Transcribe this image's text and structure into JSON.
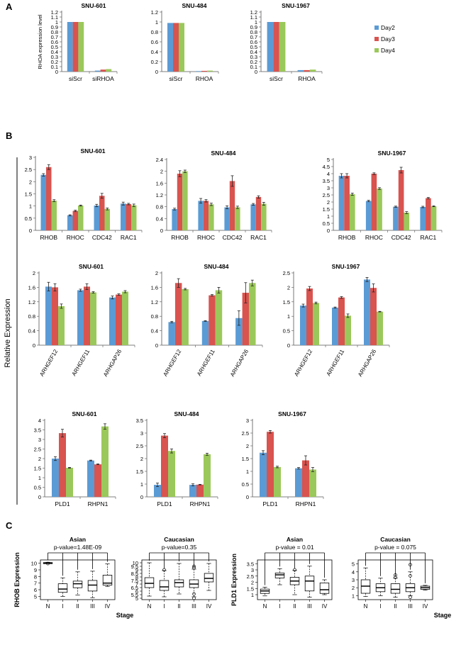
{
  "panel_labels": [
    "A",
    "B",
    "C"
  ],
  "shared_ylabel": "Relative Expression",
  "colors": {
    "day2": "#5b9bd5",
    "day3": "#d9534f",
    "day4": "#9bc85a",
    "axis": "#555555"
  },
  "legend": [
    "Day2",
    "Day3",
    "Day4"
  ],
  "chart_data": [
    {
      "id": "a1",
      "type": "bar",
      "title": "SNU-601",
      "ylabel": "RHOA expression level",
      "categories": [
        "siScr",
        "siRHOA"
      ],
      "yticks": [
        0,
        0.1,
        0.2,
        0.3,
        0.4,
        0.5,
        0.6,
        0.7,
        0.8,
        0.9,
        1,
        1.1,
        1.2
      ],
      "ylim": [
        0,
        1.2
      ],
      "series": [
        {
          "name": "Day2",
          "values": [
            1,
            0.02
          ]
        },
        {
          "name": "Day3",
          "values": [
            1,
            0.04
          ]
        },
        {
          "name": "Day4",
          "values": [
            1,
            0.05
          ]
        }
      ]
    },
    {
      "id": "a2",
      "type": "bar",
      "title": "SNU-484",
      "ylabel": "",
      "categories": [
        "siScr",
        "RHOA"
      ],
      "yticks": [
        0,
        0.2,
        0.4,
        0.6,
        0.8,
        1,
        1.2
      ],
      "ylim": [
        0,
        1.2
      ],
      "series": [
        {
          "name": "Day2",
          "values": [
            0.98,
            0.01
          ]
        },
        {
          "name": "Day3",
          "values": [
            0.98,
            0.015
          ]
        },
        {
          "name": "Day4",
          "values": [
            0.98,
            0.02
          ]
        }
      ]
    },
    {
      "id": "a3",
      "type": "bar",
      "title": "SNU-1967",
      "ylabel": "",
      "categories": [
        "siScr",
        "RHOA"
      ],
      "yticks": [
        0,
        0.1,
        0.2,
        0.3,
        0.4,
        0.5,
        0.6,
        0.7,
        0.8,
        0.9,
        1,
        1.1,
        1.2
      ],
      "ylim": [
        0,
        1.2
      ],
      "series": [
        {
          "name": "Day2",
          "values": [
            1,
            0.03
          ]
        },
        {
          "name": "Day3",
          "values": [
            1,
            0.03
          ]
        },
        {
          "name": "Day4",
          "values": [
            1,
            0.04
          ]
        }
      ]
    },
    {
      "id": "b1",
      "type": "bar",
      "title": "SNU-601",
      "categories": [
        "RHOB",
        "RHOC",
        "CDC42",
        "RAC1"
      ],
      "yticks": [
        0,
        0.5,
        1,
        1.5,
        2,
        2.5,
        3
      ],
      "ylim": [
        0,
        3
      ],
      "series": [
        {
          "name": "Day2",
          "values": [
            2.28,
            0.62,
            1.02,
            1.1
          ],
          "err": [
            0.05,
            0.02,
            0.05,
            0.06
          ]
        },
        {
          "name": "Day3",
          "values": [
            2.6,
            0.8,
            1.42,
            1.08
          ],
          "err": [
            0.1,
            0.03,
            0.1,
            0.03
          ]
        },
        {
          "name": "Day4",
          "values": [
            1.22,
            1.02,
            0.88,
            1.03
          ],
          "err": [
            0.04,
            0.02,
            0.04,
            0.05
          ]
        }
      ]
    },
    {
      "id": "b2",
      "type": "bar",
      "title": "SNU-484",
      "categories": [
        "RHOB",
        "RHOC",
        "CDC42",
        "RAC1"
      ],
      "yticks": [
        0,
        0.4,
        0.8,
        1.2,
        1.6,
        2,
        2.4
      ],
      "ylim": [
        0,
        2.4
      ],
      "series": [
        {
          "name": "Day2",
          "values": [
            0.72,
            1.0,
            0.78,
            0.88
          ],
          "err": [
            0.03,
            0.08,
            0.05,
            0.03
          ]
        },
        {
          "name": "Day3",
          "values": [
            1.92,
            1.0,
            1.67,
            1.13
          ],
          "err": [
            0.1,
            0.04,
            0.18,
            0.04
          ]
        },
        {
          "name": "Day4",
          "values": [
            2.0,
            0.88,
            0.78,
            0.9
          ],
          "err": [
            0.04,
            0.04,
            0.04,
            0.05
          ]
        }
      ]
    },
    {
      "id": "b3",
      "type": "bar",
      "title": "SNU-1967",
      "categories": [
        "RHOB",
        "RHOC",
        "CDC42",
        "RAC1"
      ],
      "yticks": [
        0,
        0.5,
        1,
        1.5,
        2,
        2.5,
        3,
        3.5,
        4,
        4.5,
        5
      ],
      "ylim": [
        0,
        5
      ],
      "series": [
        {
          "name": "Day2",
          "values": [
            3.85,
            2.07,
            1.67,
            1.65
          ],
          "err": [
            0.15,
            0.05,
            0.04,
            0.05
          ]
        },
        {
          "name": "Day3",
          "values": [
            3.85,
            4.0,
            4.25,
            2.27
          ],
          "err": [
            0.15,
            0.06,
            0.2,
            0.05
          ]
        },
        {
          "name": "Day4",
          "values": [
            2.55,
            2.95,
            1.25,
            1.7
          ],
          "err": [
            0.08,
            0.06,
            0.07,
            0.03
          ]
        }
      ]
    },
    {
      "id": "b4",
      "type": "bar",
      "title": "SNU-601",
      "rotate_labels": true,
      "categories": [
        "ARHGEF12",
        "ARHGEF11",
        "ARHGAP26"
      ],
      "yticks": [
        0,
        0.4,
        0.8,
        1.2,
        1.6,
        2
      ],
      "ylim": [
        0,
        2
      ],
      "series": [
        {
          "name": "Day2",
          "values": [
            1.62,
            1.52,
            1.32
          ],
          "err": [
            0.12,
            0.03,
            0.04
          ]
        },
        {
          "name": "Day3",
          "values": [
            1.6,
            1.62,
            1.4
          ],
          "err": [
            0.1,
            0.08,
            0.02
          ]
        },
        {
          "name": "Day4",
          "values": [
            1.08,
            1.46,
            1.48
          ],
          "err": [
            0.06,
            0.02,
            0.03
          ]
        }
      ]
    },
    {
      "id": "b5",
      "type": "bar",
      "title": "SNU-484",
      "rotate_labels": true,
      "categories": [
        "ARHGEF12",
        "ARHGEF11",
        "ARHGAP26"
      ],
      "yticks": [
        0,
        0.4,
        0.8,
        1.2,
        1.6,
        2
      ],
      "ylim": [
        0,
        2
      ],
      "series": [
        {
          "name": "Day2",
          "values": [
            0.64,
            0.67,
            0.75
          ],
          "err": [
            0.02,
            0.01,
            0.2
          ]
        },
        {
          "name": "Day3",
          "values": [
            1.72,
            1.38,
            1.45
          ],
          "err": [
            0.12,
            0.02,
            0.28
          ]
        },
        {
          "name": "Day4",
          "values": [
            1.55,
            1.52,
            1.72
          ],
          "err": [
            0.02,
            0.08,
            0.08
          ]
        }
      ]
    },
    {
      "id": "b6",
      "type": "bar",
      "title": "SNU-1967",
      "rotate_labels": true,
      "categories": [
        "ARHGEF12",
        "ARHGEF11",
        "ARHGAP26"
      ],
      "yticks": [
        0,
        0.5,
        1,
        1.5,
        2,
        2.5
      ],
      "ylim": [
        0,
        2.5
      ],
      "series": [
        {
          "name": "Day2",
          "values": [
            1.37,
            1.3,
            2.27
          ],
          "err": [
            0.05,
            0.02,
            0.07
          ]
        },
        {
          "name": "Day3",
          "values": [
            1.96,
            1.65,
            1.98
          ],
          "err": [
            0.07,
            0.03,
            0.14
          ]
        },
        {
          "name": "Day4",
          "values": [
            1.46,
            1.02,
            1.16
          ],
          "err": [
            0.03,
            0.06,
            0.01
          ]
        }
      ]
    },
    {
      "id": "b7",
      "type": "bar",
      "title": "SNU-601",
      "categories": [
        "PLD1",
        "RHPN1"
      ],
      "yticks": [
        0,
        0.5,
        1,
        1.5,
        2,
        2.5,
        3,
        3.5,
        4
      ],
      "ylim": [
        0,
        4
      ],
      "series": [
        {
          "name": "Day2",
          "values": [
            2.0,
            1.9
          ],
          "err": [
            0.1,
            0.02
          ]
        },
        {
          "name": "Day3",
          "values": [
            3.33,
            1.7
          ],
          "err": [
            0.2,
            0.02
          ]
        },
        {
          "name": "Day4",
          "values": [
            1.52,
            3.68
          ],
          "err": [
            0.02,
            0.14
          ]
        }
      ]
    },
    {
      "id": "b8",
      "type": "bar",
      "title": "SNU-484",
      "categories": [
        "PLD1",
        "RHPN1"
      ],
      "yticks": [
        0,
        1,
        1.5,
        2,
        2.5,
        3,
        3.5
      ],
      "ylim": [
        0.5,
        3.5
      ],
      "series": [
        {
          "name": "Day2",
          "values": [
            0.97,
            0.97
          ],
          "err": [
            0.07,
            0.04
          ]
        },
        {
          "name": "Day3",
          "values": [
            2.9,
            0.98
          ],
          "err": [
            0.08,
            0.01
          ]
        },
        {
          "name": "Day4",
          "values": [
            2.3,
            2.17
          ],
          "err": [
            0.08,
            0.04
          ]
        }
      ]
    },
    {
      "id": "b9",
      "type": "bar",
      "title": "SNU-1967",
      "categories": [
        "PLD1",
        "RHPN1"
      ],
      "yticks": [
        0,
        0.5,
        1,
        1.5,
        2,
        2.5,
        3
      ],
      "ylim": [
        0,
        3
      ],
      "series": [
        {
          "name": "Day2",
          "values": [
            1.73,
            1.12
          ],
          "err": [
            0.08,
            0.03
          ]
        },
        {
          "name": "Day3",
          "values": [
            2.55,
            1.43
          ],
          "err": [
            0.05,
            0.18
          ]
        },
        {
          "name": "Day4",
          "values": [
            1.17,
            1.07
          ],
          "err": [
            0.03,
            0.08
          ]
        }
      ]
    },
    {
      "id": "c1",
      "type": "boxplot",
      "title": "Asian",
      "pvalue": "p-value=1.48E-09",
      "ylabel": "RHOB Expression",
      "xlabel": "Stage",
      "categories": [
        "N",
        "I",
        "II",
        "III",
        "IV"
      ],
      "yticks": [
        5,
        6,
        7,
        8,
        9,
        10
      ],
      "ylim": [
        4.5,
        10.5
      ],
      "boxes": [
        {
          "min": 9.95,
          "q1": 10.0,
          "median": 10.05,
          "q3": 10.1,
          "max": 10.15,
          "outliers": [
            9.95
          ]
        },
        {
          "min": 5.0,
          "q1": 5.6,
          "median": 6.1,
          "q3": 6.9,
          "max": 7.8,
          "outliers": []
        },
        {
          "min": 5.2,
          "q1": 6.3,
          "median": 6.9,
          "q3": 7.3,
          "max": 8.7,
          "outliers": []
        },
        {
          "min": 4.8,
          "q1": 5.8,
          "median": 6.7,
          "q3": 7.4,
          "max": 8.8,
          "outliers": []
        },
        {
          "min": 6.5,
          "q1": 6.7,
          "median": 7.0,
          "q3": 8.2,
          "max": 9.9,
          "outliers": []
        }
      ]
    },
    {
      "id": "c2",
      "type": "boxplot",
      "title": "Caucasian",
      "pvalue": "p-value=0.35",
      "ylabel": "",
      "xlabel": "",
      "categories": [
        "N",
        "I",
        "II",
        "III",
        "IV"
      ],
      "yticks": [
        5,
        5.5,
        6,
        6.5,
        7,
        7.5,
        8,
        8.5,
        9,
        9.5,
        10
      ],
      "ylim": [
        4.8,
        10.4
      ],
      "boxes": [
        {
          "min": 5.3,
          "q1": 6.5,
          "median": 7.1,
          "q3": 7.9,
          "max": 10.0,
          "outliers": []
        },
        {
          "min": 5.2,
          "q1": 6.1,
          "median": 6.6,
          "q3": 7.5,
          "max": 8.9,
          "outliers": [
            9.0
          ]
        },
        {
          "min": 5.6,
          "q1": 6.6,
          "median": 7.2,
          "q3": 7.6,
          "max": 9.9,
          "outliers": []
        },
        {
          "min": 5.2,
          "q1": 6.5,
          "median": 7.0,
          "q3": 7.6,
          "max": 9.1,
          "outliers": [
            9.3,
            9.5,
            5.0,
            5.6
          ]
        },
        {
          "min": 6.1,
          "q1": 7.3,
          "median": 7.8,
          "q3": 8.5,
          "max": 9.9,
          "outliers": []
        }
      ]
    },
    {
      "id": "c3",
      "type": "boxplot",
      "title": "Asian",
      "pvalue": "p-value = 0.01",
      "ylabel": "PLD1 Expression",
      "xlabel": "",
      "categories": [
        "N",
        "I",
        "II",
        "III",
        "IV"
      ],
      "yticks": [
        1,
        1.5,
        2,
        2.5,
        3,
        3.5
      ],
      "ylim": [
        0.6,
        3.8
      ],
      "boxes": [
        {
          "min": 0.9,
          "q1": 1.1,
          "median": 1.3,
          "q3": 1.45,
          "max": 1.6,
          "outliers": []
        },
        {
          "min": 1.8,
          "q1": 2.35,
          "median": 2.6,
          "q3": 2.75,
          "max": 3.1,
          "outliers": []
        },
        {
          "min": 1.0,
          "q1": 1.8,
          "median": 2.1,
          "q3": 2.4,
          "max": 2.95,
          "outliers": [
            3.0
          ]
        },
        {
          "min": 0.8,
          "q1": 1.3,
          "median": 2.1,
          "q3": 2.5,
          "max": 3.3,
          "outliers": []
        },
        {
          "min": 1.0,
          "q1": 1.1,
          "median": 1.4,
          "q3": 1.95,
          "max": 2.2,
          "outliers": []
        }
      ]
    },
    {
      "id": "c4",
      "type": "boxplot",
      "title": "Caucasian",
      "pvalue": "p-value = 0.075",
      "ylabel": "",
      "xlabel": "Stage",
      "categories": [
        "N",
        "I",
        "II",
        "III",
        "IV"
      ],
      "yticks": [
        1,
        2,
        3,
        4,
        5
      ],
      "ylim": [
        0.5,
        5.5
      ],
      "boxes": [
        {
          "min": 0.9,
          "q1": 1.3,
          "median": 2.2,
          "q3": 3.0,
          "max": 4.5,
          "outliers": []
        },
        {
          "min": 1.0,
          "q1": 1.5,
          "median": 2.0,
          "q3": 2.5,
          "max": 3.2,
          "outliers": []
        },
        {
          "min": 0.8,
          "q1": 1.3,
          "median": 1.8,
          "q3": 2.5,
          "max": 3.2,
          "outliers": [
            3.6,
            3.3
          ]
        },
        {
          "min": 1.0,
          "q1": 1.5,
          "median": 2.0,
          "q3": 2.5,
          "max": 4.0,
          "outliers": [
            4.9,
            3.5,
            0.8
          ]
        },
        {
          "min": 1.7,
          "q1": 1.8,
          "median": 2.0,
          "q3": 2.2,
          "max": 2.3,
          "outliers": []
        }
      ]
    }
  ]
}
